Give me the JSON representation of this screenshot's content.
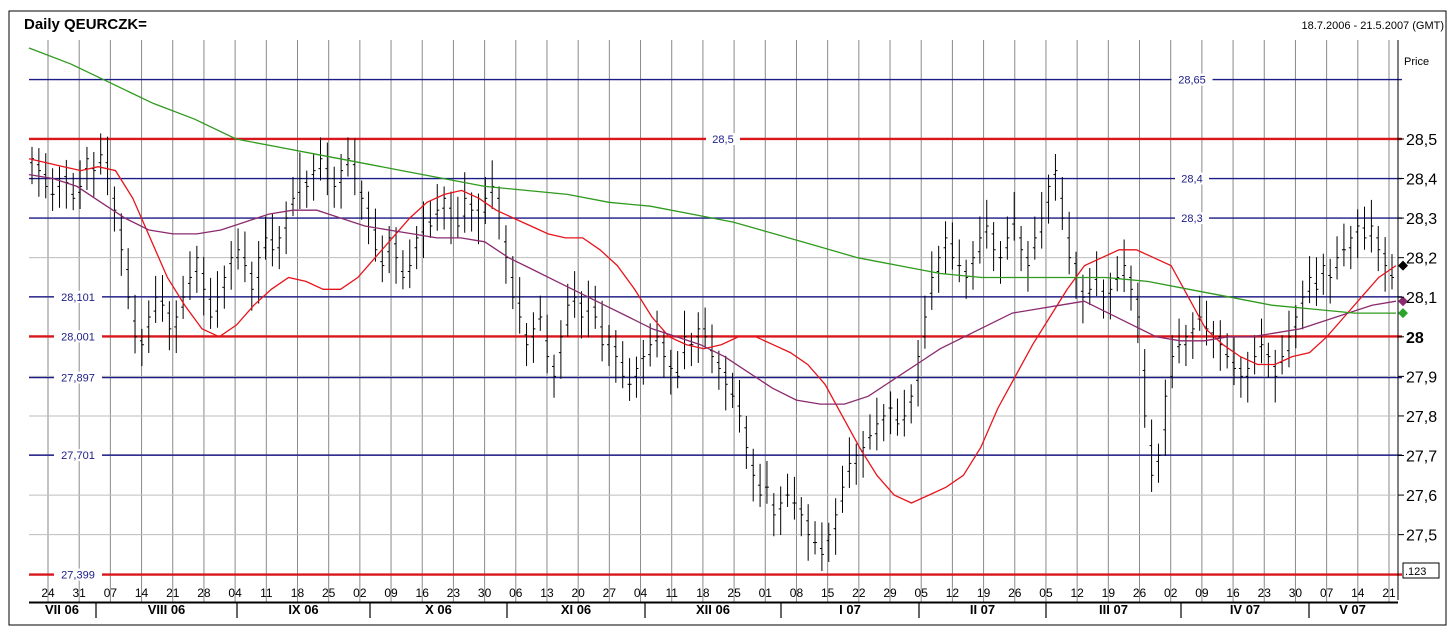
{
  "header": {
    "title": "Daily QEURCZK=",
    "date_range": "18.7.2006 - 21.5.2007 (GMT)",
    "price_label": "Price",
    "corner_label": ".123"
  },
  "colors": {
    "background": "#ffffff",
    "grid": "#8a8a8a",
    "blue_level": "#1c1c88",
    "red_level": "#d8161b",
    "bars": "#000000",
    "ma_red": "#e8141c",
    "ma_purple": "#8b2a6e",
    "ma_green": "#2f9a1e",
    "marker_black": "#000000",
    "marker_purple": "#8b2a6e",
    "marker_green": "#2aa52a"
  },
  "chart_data": {
    "type": "ohlc",
    "title": "Daily QEURCZK=",
    "subtitle": "18.7.2006 - 21.5.2007 (GMT)",
    "ylabel": "Price",
    "ylim": [
      27.35,
      28.74
    ],
    "y_ticks": [
      {
        "value": 28.5,
        "label": "28,5",
        "bold": false
      },
      {
        "value": 28.4,
        "label": "28,4",
        "bold": false
      },
      {
        "value": 28.3,
        "label": "28,3",
        "bold": false
      },
      {
        "value": 28.2,
        "label": "28,2",
        "bold": false
      },
      {
        "value": 28.1,
        "label": "28,1",
        "bold": false
      },
      {
        "value": 28.0,
        "label": "28",
        "bold": true
      },
      {
        "value": 27.9,
        "label": "27,9",
        "bold": false
      },
      {
        "value": 27.8,
        "label": "27,8",
        "bold": false
      },
      {
        "value": 27.7,
        "label": "27,7",
        "bold": false
      },
      {
        "value": 27.6,
        "label": "27,6",
        "bold": false
      },
      {
        "value": 27.5,
        "label": "27,5",
        "bold": false
      }
    ],
    "x_ticks": [
      "24",
      "31",
      "07",
      "14",
      "21",
      "28",
      "04",
      "11",
      "18",
      "25",
      "02",
      "09",
      "16",
      "23",
      "30",
      "06",
      "13",
      "20",
      "27",
      "04",
      "11",
      "18",
      "25",
      "01",
      "08",
      "15",
      "22",
      "29",
      "05",
      "12",
      "19",
      "26",
      "05",
      "12",
      "19",
      "26",
      "02",
      "09",
      "16",
      "23",
      "30",
      "07",
      "14",
      "21"
    ],
    "months": [
      "VII 06",
      "VIII 06",
      "IX 06",
      "X 06",
      "XI 06",
      "XII 06",
      "I 07",
      "II 07",
      "III 07",
      "IV 07",
      "V 07"
    ],
    "levels": [
      {
        "value": 28.65,
        "label": "28,65",
        "color": "blue",
        "label_pos": "right"
      },
      {
        "value": 28.5,
        "label": "28,5",
        "color": "red",
        "label_pos": "center"
      },
      {
        "value": 28.4,
        "label": "28,4",
        "color": "blue",
        "label_pos": "right"
      },
      {
        "value": 28.3,
        "label": "28,3",
        "color": "blue",
        "label_pos": "right"
      },
      {
        "value": 28.101,
        "label": "28,101",
        "color": "blue",
        "label_pos": "left"
      },
      {
        "value": 28.001,
        "label": "28,001",
        "color": "red",
        "label_pos": "left"
      },
      {
        "value": 27.897,
        "label": "27,897",
        "color": "blue",
        "label_pos": "left"
      },
      {
        "value": 27.701,
        "label": "27,701",
        "color": "blue",
        "label_pos": "left"
      },
      {
        "value": 27.399,
        "label": "27,399",
        "color": "red",
        "label_pos": "left"
      }
    ],
    "ohlc_close": [
      28.45,
      28.42,
      28.38,
      28.36,
      28.4,
      28.39,
      28.35,
      28.38,
      28.45,
      28.42,
      28.46,
      28.4,
      28.32,
      28.22,
      28.1,
      28.0,
      27.98,
      28.05,
      28.1,
      28.08,
      28.02,
      28.05,
      28.1,
      28.15,
      28.2,
      28.12,
      28.05,
      28.1,
      28.15,
      28.2,
      28.22,
      28.18,
      28.12,
      28.2,
      28.25,
      28.22,
      28.25,
      28.3,
      28.35,
      28.4,
      28.38,
      28.42,
      28.45,
      28.4,
      28.38,
      28.42,
      28.45,
      28.4,
      28.35,
      28.3,
      28.22,
      28.18,
      28.25,
      28.2,
      28.15,
      28.18,
      28.25,
      28.3,
      28.28,
      28.32,
      28.35,
      28.3,
      28.28,
      28.35,
      28.32,
      28.3,
      28.35,
      28.38,
      28.3,
      28.2,
      28.1,
      28.05,
      27.98,
      28.02,
      28.05,
      27.95,
      27.9,
      28.0,
      28.08,
      28.1,
      28.05,
      28.1,
      28.05,
      27.98,
      28.0,
      27.95,
      27.9,
      27.88,
      27.92,
      27.95,
      27.98,
      28.0,
      27.95,
      27.92,
      27.9,
      28.0,
      27.98,
      28.02,
      28.0,
      27.95,
      27.92,
      27.88,
      27.85,
      27.8,
      27.72,
      27.65,
      27.6,
      27.62,
      27.55,
      27.58,
      27.6,
      27.58,
      27.55,
      27.5,
      27.48,
      27.45,
      27.5,
      27.55,
      27.62,
      27.68,
      27.7,
      27.72,
      27.75,
      27.78,
      27.8,
      27.82,
      27.78,
      27.8,
      27.85,
      27.95,
      28.05,
      28.15,
      28.2,
      28.25,
      28.2,
      28.18,
      28.15,
      28.2,
      28.25,
      28.28,
      28.22,
      28.2,
      28.25,
      28.3,
      28.22,
      28.18,
      28.25,
      28.3,
      28.38,
      28.42,
      28.3,
      28.2,
      28.15,
      28.1,
      28.12,
      28.15,
      28.1,
      28.12,
      28.15,
      28.18,
      28.12,
      28.05,
      27.8,
      27.65,
      27.7,
      27.85,
      27.95,
      27.98,
      28.0,
      28.02,
      28.05,
      28.02,
      28.0,
      27.98,
      27.95,
      27.92,
      27.9,
      27.92,
      27.95,
      27.98,
      27.95,
      27.9,
      27.95,
      28.0,
      28.05,
      28.1,
      28.15,
      28.12,
      28.18,
      28.15,
      28.2,
      28.22,
      28.25,
      28.28,
      28.25,
      28.28,
      28.22,
      28.18,
      28.15
    ],
    "series": [
      {
        "values": [
          28.45,
          28.44,
          28.43,
          28.42,
          28.43,
          28.42,
          28.35,
          28.25,
          28.15,
          28.08,
          28.02,
          28.0,
          28.03,
          28.08,
          28.12,
          28.15,
          28.14,
          28.12,
          28.12,
          28.15,
          28.2,
          28.25,
          28.3,
          28.34,
          28.36,
          28.37,
          28.35,
          28.32,
          28.3,
          28.28,
          28.26,
          28.25,
          28.25,
          28.22,
          28.18,
          28.12,
          28.05,
          28.0,
          27.98,
          27.97,
          27.98,
          28.0,
          28.0,
          27.98,
          27.96,
          27.93,
          27.88,
          27.8,
          27.72,
          27.65,
          27.6,
          27.58,
          27.6,
          27.62,
          27.65,
          27.72,
          27.82,
          27.9,
          27.98,
          28.05,
          28.12,
          28.18,
          28.2,
          28.22,
          28.22,
          28.2,
          28.18,
          28.1,
          28.02,
          27.98,
          27.95,
          27.93,
          27.93,
          27.95,
          27.96,
          28.0,
          28.05,
          28.1,
          28.15,
          28.18
        ]
      },
      {
        "values": [
          28.41,
          28.4,
          28.38,
          28.34,
          28.3,
          28.27,
          28.26,
          28.26,
          28.27,
          28.29,
          28.31,
          28.32,
          28.32,
          28.3,
          28.28,
          28.27,
          28.26,
          28.25,
          28.25,
          28.24,
          28.2,
          28.17,
          28.14,
          28.11,
          28.08,
          28.05,
          28.02,
          28.0,
          27.98,
          27.95,
          27.91,
          27.87,
          27.84,
          27.83,
          27.83,
          27.85,
          27.89,
          27.93,
          27.97,
          28.0,
          28.03,
          28.06,
          28.07,
          28.08,
          28.09,
          28.06,
          28.03,
          28.0,
          27.99,
          27.99,
          28.0,
          28.0,
          28.01,
          28.02,
          28.04,
          28.06,
          28.08,
          28.09
        ]
      },
      {
        "values": [
          28.73,
          28.69,
          28.64,
          28.59,
          28.55,
          28.5,
          28.48,
          28.46,
          28.44,
          28.42,
          28.4,
          28.38,
          28.37,
          28.36,
          28.34,
          28.33,
          28.31,
          28.29,
          28.26,
          28.23,
          28.2,
          28.18,
          28.16,
          28.15,
          28.15,
          28.15,
          28.15,
          28.14,
          28.12,
          28.1,
          28.08,
          28.07,
          28.06,
          28.06
        ]
      }
    ]
  }
}
